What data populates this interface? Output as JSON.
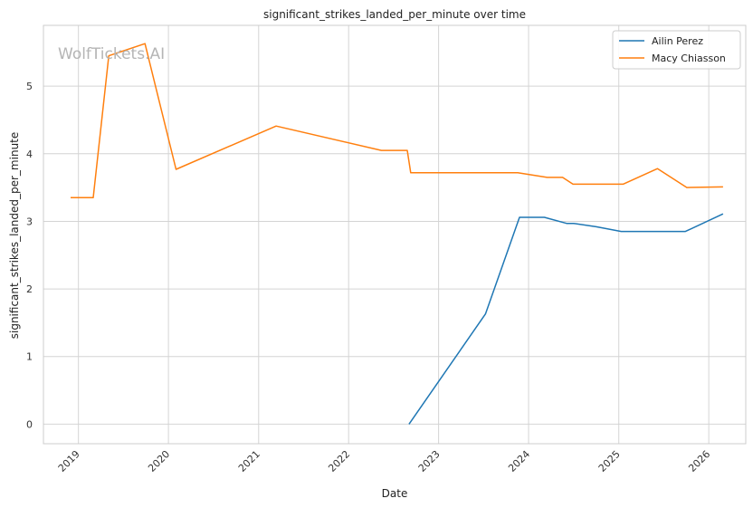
{
  "chart_data": {
    "type": "line",
    "title": "significant_strikes_landed_per_minute over time",
    "xlabel": "Date",
    "ylabel": "significant_strikes_landed_per_minute",
    "x_ticks": [
      "2019",
      "2020",
      "2021",
      "2022",
      "2023",
      "2024",
      "2025",
      "2026"
    ],
    "y_ticks": [
      "0",
      "1",
      "2",
      "3",
      "4",
      "5"
    ],
    "xlim": [
      "2018-08-12",
      "2026-05-31"
    ],
    "ylim": [
      -0.29,
      5.9
    ],
    "grid": true,
    "legend_position": "top-right",
    "watermark": "WolfTickets.AI",
    "series": [
      {
        "name": "Ailin Perez",
        "color": "#1f77b4",
        "points": [
          [
            "2022-09-03",
            0.0
          ],
          [
            "2023-07-10",
            1.63
          ],
          [
            "2023-11-25",
            3.06
          ],
          [
            "2024-03-05",
            3.06
          ],
          [
            "2024-06-03",
            2.97
          ],
          [
            "2024-07-01",
            2.97
          ],
          [
            "2024-10-01",
            2.92
          ],
          [
            "2025-01-11",
            2.85
          ],
          [
            "2025-09-28",
            2.85
          ],
          [
            "2026-02-28",
            3.11
          ]
        ]
      },
      {
        "name": "Macy Chiasson",
        "color": "#ff7f0e",
        "points": [
          [
            "2018-11-30",
            3.35
          ],
          [
            "2019-03-02",
            3.35
          ],
          [
            "2019-05-04",
            5.45
          ],
          [
            "2019-09-28",
            5.63
          ],
          [
            "2020-02-01",
            3.77
          ],
          [
            "2021-03-13",
            4.41
          ],
          [
            "2022-05-14",
            4.05
          ],
          [
            "2022-08-27",
            4.05
          ],
          [
            "2022-09-10",
            3.72
          ],
          [
            "2023-11-18",
            3.72
          ],
          [
            "2024-03-16",
            3.65
          ],
          [
            "2024-05-18",
            3.65
          ],
          [
            "2024-06-29",
            3.55
          ],
          [
            "2025-01-18",
            3.55
          ],
          [
            "2025-06-07",
            3.78
          ],
          [
            "2025-10-04",
            3.5
          ],
          [
            "2026-02-28",
            3.51
          ]
        ]
      }
    ]
  }
}
